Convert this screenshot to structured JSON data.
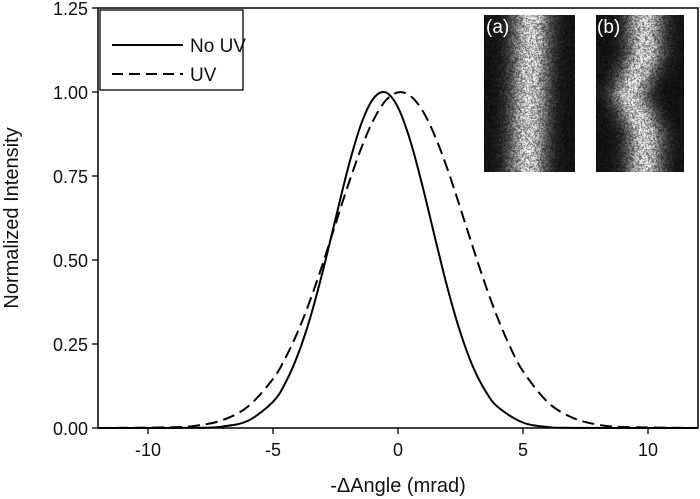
{
  "chart_data": {
    "type": "line",
    "title": "",
    "xlabel": "-ΔAngle (mrad)",
    "ylabel": "Normalized Intensity",
    "xlim": [
      -12,
      12
    ],
    "ylim": [
      0,
      1.25
    ],
    "xticks": [
      -10,
      -5,
      0,
      5,
      10
    ],
    "xtick_labels": [
      "-10",
      "-5",
      "0",
      "5",
      "10"
    ],
    "yticks": [
      0,
      0.25,
      0.5,
      0.75,
      1.0,
      1.25
    ],
    "ytick_labels": [
      "0.00",
      "0.25",
      "0.50",
      "0.75",
      "1.00",
      "1.25"
    ],
    "grid": false,
    "legend_position": "top-left",
    "series": [
      {
        "name": "No UV",
        "style": "solid",
        "color": "#000000",
        "x": [
          -12,
          -8,
          -7,
          -6,
          -5,
          -4.5,
          -4,
          -3.5,
          -3,
          -2.5,
          -2,
          -1.5,
          -1,
          -0.5,
          0,
          0.5,
          1,
          1.5,
          2,
          2.5,
          3,
          3.5,
          4,
          5,
          6,
          7,
          12
        ],
        "y": [
          0,
          0.0007,
          0.0046,
          0.0216,
          0.078,
          0.135,
          0.219,
          0.331,
          0.469,
          0.622,
          0.773,
          0.899,
          0.979,
          0.999,
          0.954,
          0.853,
          0.714,
          0.56,
          0.411,
          0.283,
          0.182,
          0.11,
          0.062,
          0.016,
          0.003,
          0.0005,
          0
        ]
      },
      {
        "name": "UV",
        "style": "dashed",
        "color": "#000000",
        "x": [
          -12,
          -9,
          -8,
          -7,
          -6,
          -5,
          -4.5,
          -4,
          -3.5,
          -3,
          -2.5,
          -2,
          -1.5,
          -1,
          -0.5,
          0,
          0.5,
          1,
          1.5,
          2,
          2.5,
          3,
          3.5,
          4,
          4.5,
          5,
          6,
          7,
          8,
          9,
          12
        ],
        "y": [
          0,
          0.0022,
          0.0078,
          0.024,
          0.064,
          0.146,
          0.209,
          0.288,
          0.383,
          0.491,
          0.607,
          0.722,
          0.827,
          0.914,
          0.974,
          0.999,
          0.988,
          0.942,
          0.865,
          0.766,
          0.653,
          0.537,
          0.425,
          0.325,
          0.239,
          0.169,
          0.076,
          0.03,
          0.01,
          0.003,
          0
        ]
      }
    ],
    "insets": [
      {
        "label": "(a)"
      },
      {
        "label": "(b)"
      }
    ]
  }
}
